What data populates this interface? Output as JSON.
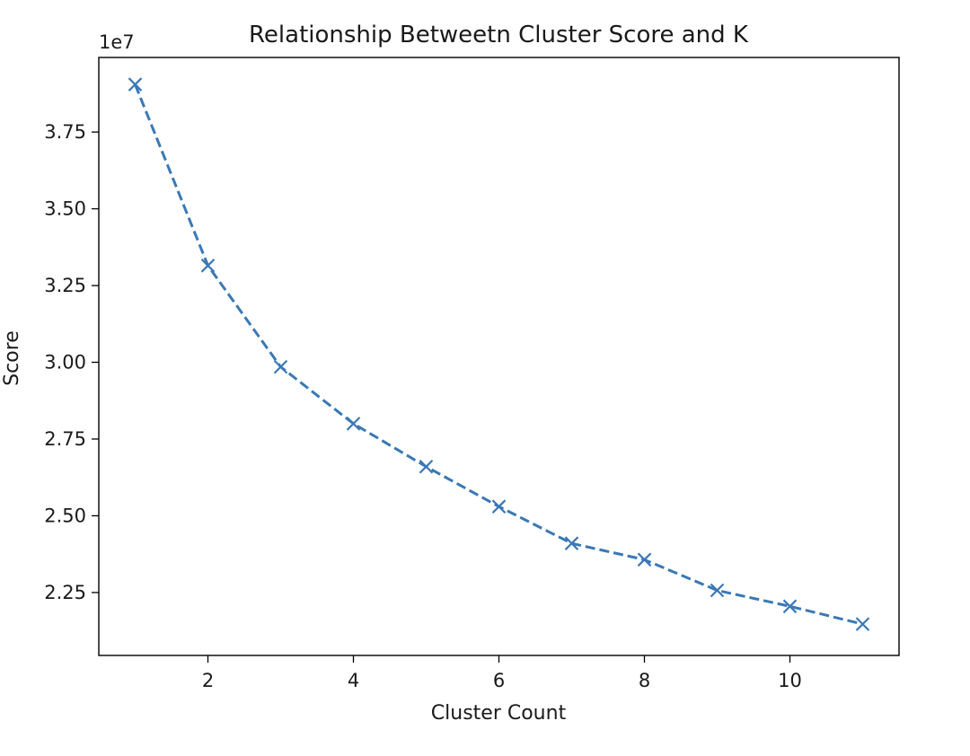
{
  "chart_data": {
    "type": "line",
    "title": "Relationship Betweetn Cluster Score and K",
    "xlabel": "Cluster Count",
    "ylabel": "Score",
    "y_offset_label": "1e7",
    "x": [
      1,
      2,
      3,
      4,
      5,
      6,
      7,
      8,
      9,
      10,
      11
    ],
    "series": [
      {
        "values": [
          3.905,
          3.315,
          2.985,
          2.8,
          2.66,
          2.53,
          2.41,
          2.357,
          2.257,
          2.205,
          2.147
        ],
        "color": "#3a78b5",
        "line_style": "dashed",
        "marker": "x"
      }
    ],
    "xlim": [
      0.5,
      11.5
    ],
    "ylim": [
      2.045,
      3.993
    ],
    "xticks": [
      2,
      4,
      6,
      8,
      10
    ],
    "xtick_labels": [
      "2",
      "4",
      "6",
      "8",
      "10"
    ],
    "yticks": [
      2.25,
      2.5,
      2.75,
      3.0,
      3.25,
      3.5,
      3.75
    ],
    "ytick_labels": [
      "2.25",
      "2.50",
      "2.75",
      "3.00",
      "3.25",
      "3.50",
      "3.75"
    ],
    "grid": false,
    "legend": false
  }
}
